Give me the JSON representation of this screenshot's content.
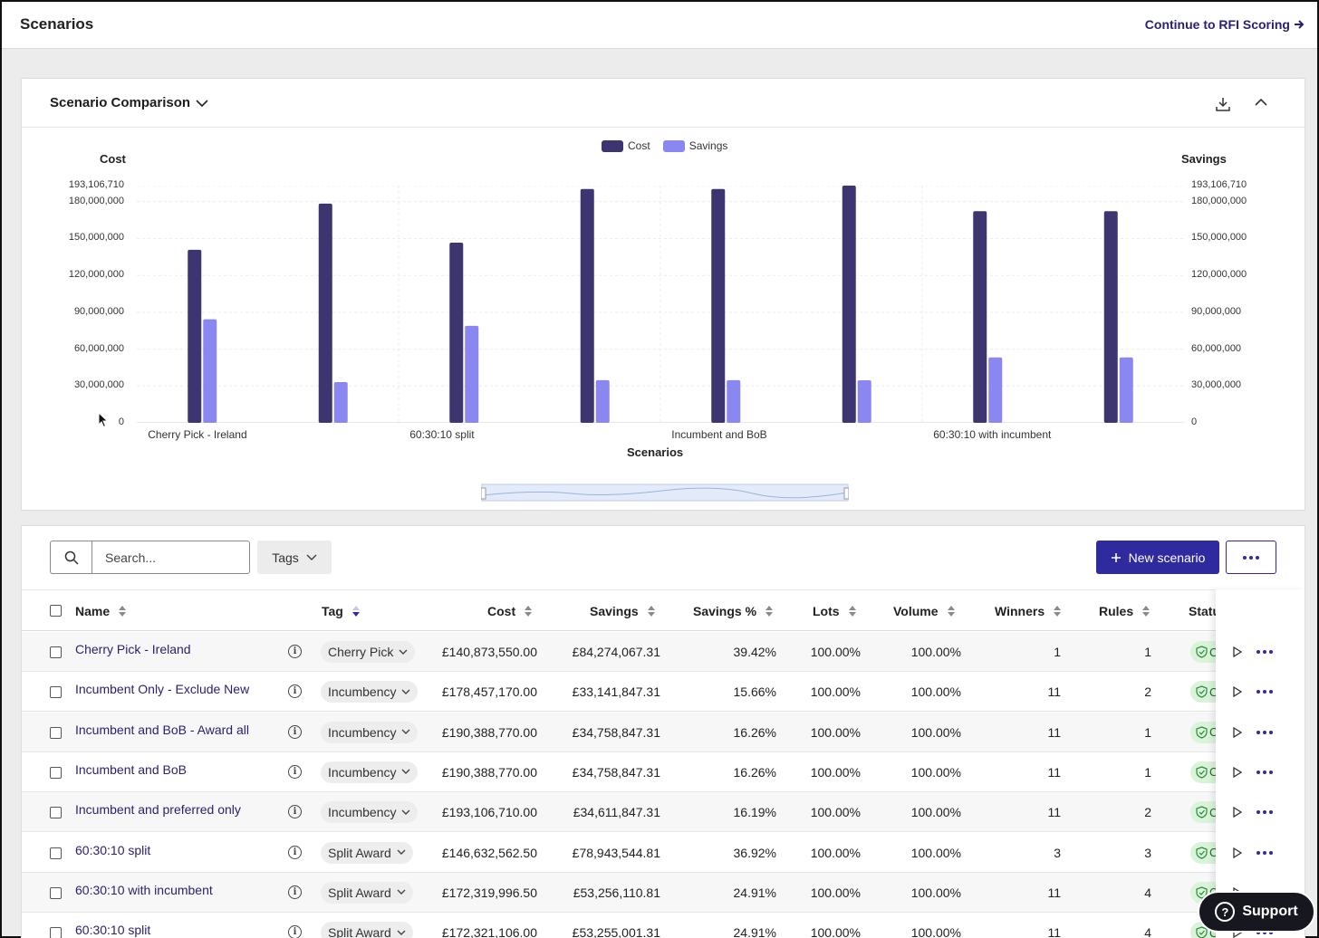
{
  "header": {
    "title": "Scenarios",
    "continue_label": "Continue to RFI Scoring"
  },
  "chart_card": {
    "title": "Scenario Comparison"
  },
  "chart_data": {
    "type": "bar",
    "title": "",
    "xlabel": "Scenarios",
    "ylabel": "Cost",
    "ylabel_right": "Savings",
    "legend": [
      "Cost",
      "Savings"
    ],
    "legend_position": "top-center",
    "categories": [
      "Cherry Pick - Ireland",
      "Incumbent Only - Exclude New",
      "60:30:10 split",
      "Incumbent and BoB - Award all",
      "Incumbent and BoB",
      "Incumbent and preferred only",
      "60:30:10 with incumbent",
      "60:30:10 split"
    ],
    "visible_category_labels": [
      "Cherry Pick - Ireland",
      "60:30:10 split",
      "Incumbent and BoB",
      "60:30:10 with incumbent"
    ],
    "series": [
      {
        "name": "Cost",
        "color": "#3c3570",
        "values": [
          140873550,
          178457170,
          146632562.5,
          190388770,
          190388770,
          193106710,
          172319996.5,
          172321106
        ]
      },
      {
        "name": "Savings",
        "color": "#8b87f0",
        "values": [
          84274067.31,
          33141847.31,
          78943544.81,
          34758847.31,
          34758847.31,
          34611847.31,
          53256110.81,
          53255001.31
        ]
      }
    ],
    "ylim": [
      0,
      193106710
    ],
    "yticks": [
      "0",
      "30,000,000",
      "60,000,000",
      "90,000,000",
      "120,000,000",
      "150,000,000",
      "180,000,000",
      "193,106,710"
    ],
    "grid": true
  },
  "toolbar": {
    "search_placeholder": "Search...",
    "tags_label": "Tags",
    "new_label": "New scenario"
  },
  "table": {
    "columns": [
      "Name",
      "Tag",
      "Cost",
      "Savings",
      "Savings %",
      "Lots",
      "Volume",
      "Winners",
      "Rules",
      "Status"
    ],
    "rows": [
      {
        "name": "Cherry Pick - Ireland",
        "tag": "Cherry Pick",
        "cost": "£140,873,550.00",
        "savings": "£84,274,067.31",
        "pct": "39.42%",
        "lots": "100.00%",
        "volume": "100.00%",
        "winners": "1",
        "rules": "1",
        "status": "C"
      },
      {
        "name": "Incumbent Only - Exclude New",
        "tag": "Incumbency",
        "cost": "£178,457,170.00",
        "savings": "£33,141,847.31",
        "pct": "15.66%",
        "lots": "100.00%",
        "volume": "100.00%",
        "winners": "11",
        "rules": "2",
        "status": "C"
      },
      {
        "name": "Incumbent and BoB - Award all",
        "tag": "Incumbency",
        "cost": "£190,388,770.00",
        "savings": "£34,758,847.31",
        "pct": "16.26%",
        "lots": "100.00%",
        "volume": "100.00%",
        "winners": "11",
        "rules": "1",
        "status": "C"
      },
      {
        "name": "Incumbent and BoB",
        "tag": "Incumbency",
        "cost": "£190,388,770.00",
        "savings": "£34,758,847.31",
        "pct": "16.26%",
        "lots": "100.00%",
        "volume": "100.00%",
        "winners": "11",
        "rules": "1",
        "status": "C"
      },
      {
        "name": "Incumbent and preferred only",
        "tag": "Incumbency",
        "cost": "£193,106,710.00",
        "savings": "£34,611,847.31",
        "pct": "16.19%",
        "lots": "100.00%",
        "volume": "100.00%",
        "winners": "11",
        "rules": "2",
        "status": "C"
      },
      {
        "name": "60:30:10 split",
        "tag": "Split Award",
        "cost": "£146,632,562.50",
        "savings": "£78,943,544.81",
        "pct": "36.92%",
        "lots": "100.00%",
        "volume": "100.00%",
        "winners": "3",
        "rules": "3",
        "status": "C"
      },
      {
        "name": "60:30:10 with incumbent",
        "tag": "Split Award",
        "cost": "£172,319,996.50",
        "savings": "£53,256,110.81",
        "pct": "24.91%",
        "lots": "100.00%",
        "volume": "100.00%",
        "winners": "11",
        "rules": "4",
        "status": "C"
      },
      {
        "name": "60:30:10 split",
        "tag": "Split Award",
        "cost": "£172,321,106.00",
        "savings": "£53,255,001.31",
        "pct": "24.91%",
        "lots": "100.00%",
        "volume": "100.00%",
        "winners": "11",
        "rules": "4",
        "status": "C"
      }
    ]
  },
  "support": {
    "label": "Support"
  }
}
